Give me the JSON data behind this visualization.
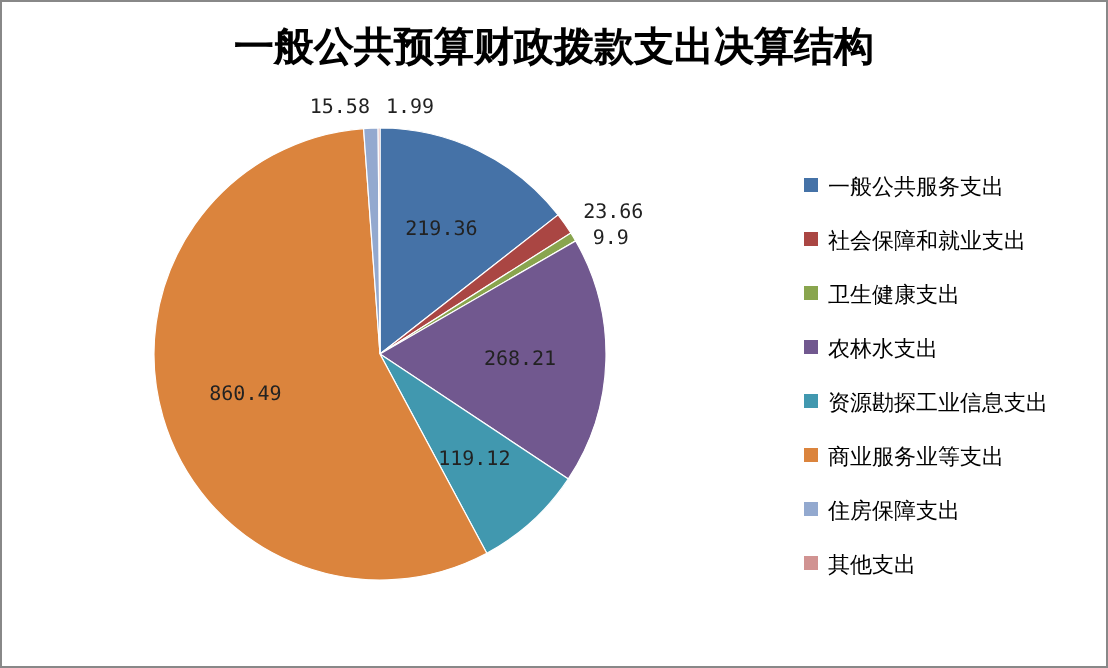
{
  "chart_data": {
    "type": "pie",
    "title": "一般公共预算财政拨款支出决算结构",
    "categories": [
      "一般公共服务支出",
      "社会保障和就业支出",
      "卫生健康支出",
      "农林水支出",
      "资源勘探工业信息支出",
      "商业服务业等支出",
      "住房保障支出",
      "其他支出"
    ],
    "values": [
      219.36,
      23.66,
      9.9,
      268.21,
      119.12,
      860.49,
      15.58,
      1.99
    ],
    "colors": [
      "#4572a7",
      "#aa4643",
      "#89a54e",
      "#71588f",
      "#4198af",
      "#db843d",
      "#93a9cf",
      "#d19392"
    ],
    "data_labels": true,
    "legend": "right"
  }
}
